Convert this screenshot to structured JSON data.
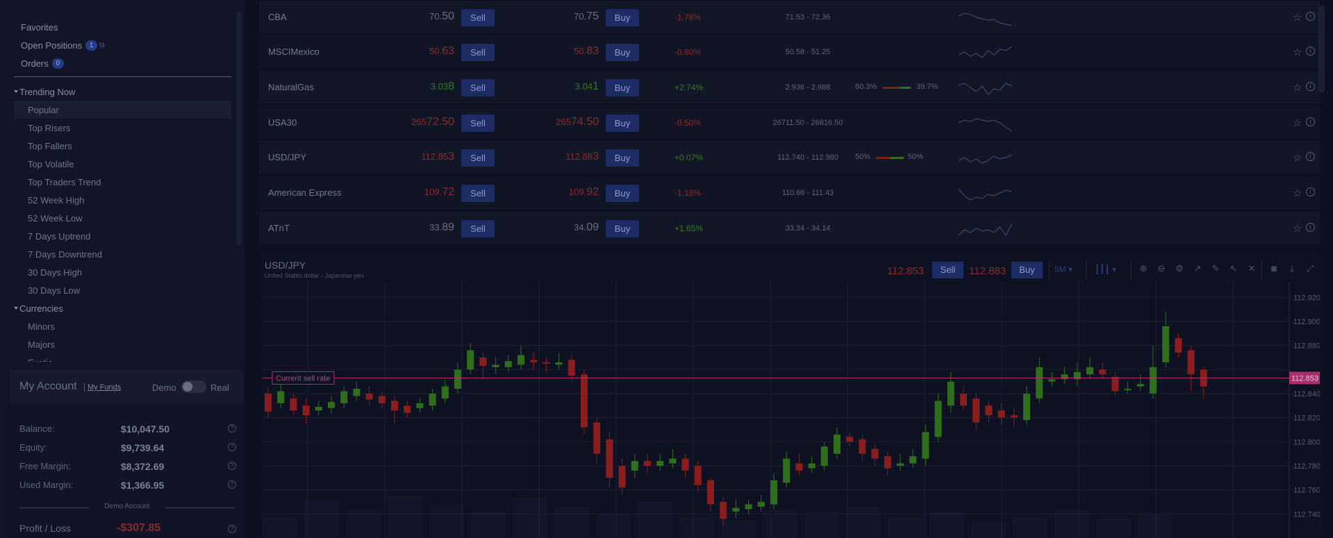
{
  "sidebar": {
    "top": [
      {
        "label": "Favorites",
        "badge": null
      },
      {
        "label": "Open Positions",
        "badge": "1"
      },
      {
        "label": "Orders",
        "badge": "0"
      }
    ],
    "groups": [
      {
        "label": "Trending Now",
        "items": [
          "Popular",
          "Top Risers",
          "Top Fallers",
          "Top Volatile",
          "Top Traders Trend",
          "52 Week High",
          "52 Week Low",
          "7 Days Uptrend",
          "7 Days Downtrend",
          "30 Days High",
          "30 Days Low"
        ]
      },
      {
        "label": "Currencies",
        "items": [
          "Minors",
          "Majors",
          "Exotic"
        ]
      }
    ]
  },
  "account": {
    "title": "My Account",
    "funds_link": "My Funds",
    "demo": "Demo",
    "real": "Real",
    "rows": [
      {
        "label": "Balance:",
        "value": "$10,047.50"
      },
      {
        "label": "Equity:",
        "value": "$9,739.64"
      },
      {
        "label": "Free Margin:",
        "value": "$8,372.69"
      },
      {
        "label": "Used Margin:",
        "value": "$1,366.95"
      }
    ],
    "divider": "Demo Account",
    "pl_label": "Profit / Loss",
    "pl_value": "-$307.85"
  },
  "instruments": {
    "sell_label": "Sell",
    "buy_label": "Buy",
    "rows": [
      {
        "name": "CBA",
        "sell_main": "70.",
        "sell_big": "50",
        "buy_main": "70.",
        "buy_big": "75",
        "price_color": "grey",
        "change": "-1.78%",
        "range": "71.53 - 72.36",
        "sent_left": "",
        "sent_right": ""
      },
      {
        "name": "MSCIMexico",
        "sell_main": "50.",
        "sell_big": "63",
        "buy_main": "50.",
        "buy_big": "83",
        "price_color": "red",
        "change": "-0.80%",
        "range": "50.58 - 51.25",
        "sent_left": "",
        "sent_right": ""
      },
      {
        "name": "NaturalGas",
        "sell_main": "3.03",
        "sell_big": "8",
        "buy_main": "3.04",
        "buy_big": "1",
        "price_color": "green",
        "change": "+2.74%",
        "range": "2.936 - 2.988",
        "sent_left": "60.3%",
        "sent_right": "39.7%"
      },
      {
        "name": "USA30",
        "sell_main": "265",
        "sell_big": "72.50",
        "buy_main": "265",
        "buy_big": "74.50",
        "price_color": "red",
        "change": "-0.50%",
        "range": "26711.50 - 26816.50",
        "sent_left": "",
        "sent_right": ""
      },
      {
        "name": "USD/JPY",
        "sell_main": "112.85",
        "sell_big": "3",
        "buy_main": "112.88",
        "buy_big": "3",
        "price_color": "red",
        "change": "+0.07%",
        "range": "112.740 - 112.980",
        "sent_left": "50%",
        "sent_right": "50%"
      },
      {
        "name": "American Express",
        "sell_main": "109.",
        "sell_big": "72",
        "buy_main": "109.",
        "buy_big": "92",
        "price_color": "red",
        "change": "-1.18%",
        "range": "110.66 - 111.43",
        "sent_left": "",
        "sent_right": ""
      },
      {
        "name": "ATnT",
        "sell_main": "33.",
        "sell_big": "89",
        "buy_main": "34.",
        "buy_big": "09",
        "price_color": "grey",
        "change": "+1.65%",
        "range": "33.34 - 34.14",
        "sent_left": "",
        "sent_right": ""
      }
    ]
  },
  "chart": {
    "symbol": "USD/JPY",
    "description": "United States dollar - Japanese yen",
    "sell_price": "112.853",
    "sell_label": "Sell",
    "buy_price": "112.883",
    "buy_label": "Buy",
    "timeframe": "5M",
    "current_rate_label": "Current sell rate",
    "current_rate_value": "112.853",
    "colors": {
      "up": "#2f6e1c",
      "down": "#8a1d1d",
      "rate": "#b0306a"
    }
  },
  "chart_data": {
    "type": "candlestick",
    "ylim": [
      112.72,
      112.93
    ],
    "y_ticks": [
      112.92,
      112.9,
      112.88,
      112.86,
      112.84,
      112.82,
      112.8,
      112.78,
      112.76,
      112.74
    ],
    "y_tick_labels": [
      "112.920",
      "112.900",
      "112.880",
      "",
      "112.840",
      "112.820",
      "112.800",
      "112.780",
      "112.760",
      "112.740"
    ],
    "current": 112.853,
    "candles": [
      [
        112.84,
        112.825,
        112.845,
        112.82
      ],
      [
        112.832,
        112.842,
        112.848,
        112.828
      ],
      [
        112.836,
        112.826,
        112.84,
        112.822
      ],
      [
        112.83,
        112.822,
        112.836,
        112.815
      ],
      [
        112.826,
        112.829,
        112.834,
        112.822
      ],
      [
        112.828,
        112.833,
        112.838,
        112.824
      ],
      [
        112.832,
        112.842,
        112.846,
        112.828
      ],
      [
        112.838,
        112.844,
        112.85,
        112.834
      ],
      [
        112.84,
        112.835,
        112.846,
        112.83
      ],
      [
        112.838,
        112.832,
        112.842,
        112.828
      ],
      [
        112.834,
        112.826,
        112.838,
        112.815
      ],
      [
        112.83,
        112.824,
        112.834,
        112.82
      ],
      [
        112.828,
        112.832,
        112.836,
        112.824
      ],
      [
        112.83,
        112.84,
        112.844,
        112.826
      ],
      [
        112.836,
        112.846,
        112.852,
        112.832
      ],
      [
        112.844,
        112.86,
        112.866,
        112.84
      ],
      [
        112.86,
        112.876,
        112.882,
        112.856
      ],
      [
        112.87,
        112.863,
        112.874,
        112.852
      ],
      [
        112.862,
        112.864,
        112.87,
        112.856
      ],
      [
        112.862,
        112.867,
        112.872,
        112.858
      ],
      [
        112.864,
        112.872,
        112.88,
        112.86
      ],
      [
        112.868,
        112.866,
        112.874,
        112.86
      ],
      [
        112.866,
        112.865,
        112.87,
        112.858
      ],
      [
        112.864,
        112.866,
        112.874,
        112.86
      ],
      [
        112.868,
        112.855,
        112.872,
        112.85
      ],
      [
        112.856,
        112.812,
        112.86,
        112.806
      ],
      [
        112.816,
        112.79,
        112.82,
        112.782
      ],
      [
        112.802,
        112.77,
        112.808,
        112.762
      ],
      [
        112.78,
        112.762,
        112.786,
        112.756
      ],
      [
        112.776,
        112.784,
        112.79,
        112.77
      ],
      [
        112.784,
        112.78,
        112.79,
        112.774
      ],
      [
        112.78,
        112.784,
        112.79,
        112.776
      ],
      [
        112.782,
        112.786,
        112.794,
        112.778
      ],
      [
        112.786,
        112.776,
        112.79,
        112.77
      ],
      [
        112.78,
        112.764,
        112.784,
        112.758
      ],
      [
        112.768,
        112.748,
        112.77,
        112.742
      ],
      [
        112.75,
        112.736,
        112.754,
        112.73
      ],
      [
        112.742,
        112.745,
        112.752,
        112.736
      ],
      [
        112.744,
        112.748,
        112.752,
        112.74
      ],
      [
        112.746,
        112.75,
        112.756,
        112.742
      ],
      [
        112.748,
        112.768,
        112.774,
        112.744
      ],
      [
        112.766,
        112.786,
        112.792,
        112.762
      ],
      [
        112.782,
        112.776,
        112.79,
        112.772
      ],
      [
        112.778,
        112.782,
        112.788,
        112.774
      ],
      [
        112.78,
        112.796,
        112.8,
        112.776
      ],
      [
        112.79,
        112.806,
        112.812,
        112.786
      ],
      [
        112.804,
        112.8,
        112.808,
        112.796
      ],
      [
        112.802,
        112.79,
        112.806,
        112.784
      ],
      [
        112.794,
        112.786,
        112.798,
        112.78
      ],
      [
        112.788,
        112.778,
        112.792,
        112.772
      ],
      [
        112.78,
        112.782,
        112.79,
        112.776
      ],
      [
        112.782,
        112.788,
        112.794,
        112.778
      ],
      [
        112.786,
        112.808,
        112.814,
        112.78
      ],
      [
        112.804,
        112.834,
        112.84,
        112.8
      ],
      [
        112.83,
        112.85,
        112.858,
        112.824
      ],
      [
        112.84,
        112.83,
        112.846,
        112.826
      ],
      [
        112.836,
        112.816,
        112.84,
        112.81
      ],
      [
        112.83,
        112.822,
        112.834,
        112.816
      ],
      [
        112.826,
        112.82,
        112.832,
        112.814
      ],
      [
        112.822,
        112.82,
        112.828,
        112.812
      ],
      [
        112.818,
        112.84,
        112.846,
        112.814
      ],
      [
        112.836,
        112.862,
        112.87,
        112.832
      ],
      [
        112.85,
        112.852,
        112.858,
        112.846
      ],
      [
        112.852,
        112.856,
        112.862,
        112.848
      ],
      [
        112.852,
        112.858,
        112.866,
        112.846
      ],
      [
        112.856,
        112.862,
        112.87,
        112.852
      ],
      [
        112.86,
        112.856,
        112.866,
        112.852
      ],
      [
        112.854,
        112.842,
        112.858,
        112.838
      ],
      [
        112.844,
        112.844,
        112.85,
        112.84
      ],
      [
        112.846,
        112.848,
        112.856,
        112.842
      ],
      [
        112.84,
        112.862,
        112.88,
        112.836
      ],
      [
        112.866,
        112.896,
        112.908,
        112.862
      ],
      [
        112.886,
        112.874,
        112.89,
        112.87
      ],
      [
        112.876,
        112.856,
        112.88,
        112.842
      ],
      [
        112.86,
        112.846,
        112.862,
        112.836
      ]
    ]
  }
}
